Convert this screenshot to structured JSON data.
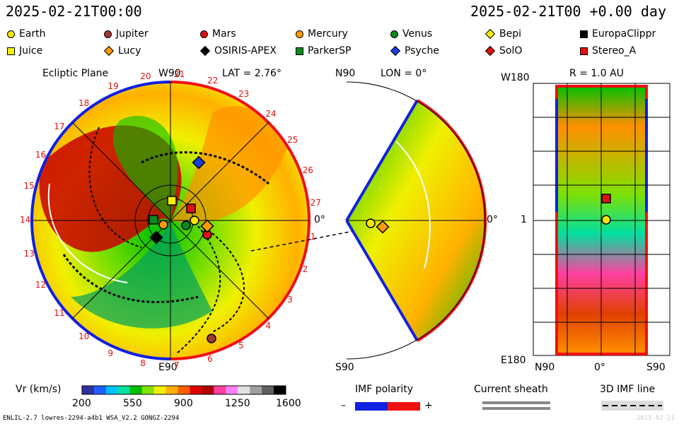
{
  "header": {
    "left_timestamp": "2025-02-21T00:00",
    "right_timestamp": "2025-02-21T00 +0.00 day"
  },
  "legend": [
    {
      "name": "Earth",
      "shape": "circle",
      "color": "#f5e600"
    },
    {
      "name": "Jupiter",
      "shape": "circle",
      "color": "#a03a30"
    },
    {
      "name": "Mars",
      "shape": "circle",
      "color": "#e01010"
    },
    {
      "name": "Mercury",
      "shape": "circle",
      "color": "#ff9a00"
    },
    {
      "name": "Venus",
      "shape": "circle",
      "color": "#0a8a20"
    },
    {
      "name": "Bepi",
      "shape": "diamond",
      "color": "#f5f000"
    },
    {
      "name": "EuropaClippr",
      "shape": "square",
      "color": "#000000"
    },
    {
      "name": "Juice",
      "shape": "square",
      "color": "#f5f000"
    },
    {
      "name": "Lucy",
      "shape": "diamond",
      "color": "#ff9a00"
    },
    {
      "name": "OSIRIS-APEX",
      "shape": "diamond",
      "color": "#000000"
    },
    {
      "name": "ParkerSP",
      "shape": "square",
      "color": "#0a8a20"
    },
    {
      "name": "Psyche",
      "shape": "diamond",
      "color": "#1a3fe0"
    },
    {
      "name": "SolO",
      "shape": "diamond",
      "color": "#e01010"
    },
    {
      "name": "Stereo_A",
      "shape": "square",
      "color": "#e01010"
    }
  ],
  "panels": {
    "ecliptic": {
      "title": "Ecliptic Plane",
      "top_label": "W90",
      "lat_label": "LAT = 2.76°",
      "bottom_label": "E90",
      "right_label": "0°",
      "carrington_numbers": [
        "20",
        "21",
        "22",
        "23",
        "24",
        "25",
        "26",
        "27",
        "1",
        "2",
        "3",
        "4",
        "5",
        "6",
        "7",
        "8",
        "9",
        "10",
        "11",
        "12",
        "13",
        "14",
        "15",
        "16",
        "17",
        "18",
        "19"
      ]
    },
    "meridional": {
      "top_label": "N90",
      "lon_label": "LON = 0°",
      "bottom_label": "S90",
      "right_label": "0°"
    },
    "radial": {
      "r_label": "R = 1.0 AU",
      "top_left": "W180",
      "mid_left": "1",
      "bottom_left": "E180",
      "bottom_axis": [
        "N90",
        "0°",
        "S90"
      ]
    }
  },
  "colorbar": {
    "label": "Vr (km/s)",
    "ticks": [
      "200",
      "550",
      "900",
      "1250",
      "1600"
    ],
    "colors": [
      "#3030a0",
      "#2060ff",
      "#00c0ff",
      "#00e0a0",
      "#00c000",
      "#80e000",
      "#f0f000",
      "#ffb000",
      "#ff6000",
      "#e00000",
      "#b00000",
      "#ff40a0",
      "#ff80ff",
      "#e0e0e0",
      "#a0a0a0",
      "#606060",
      "#000000"
    ]
  },
  "imf": {
    "label": "IMF polarity",
    "minus": "–",
    "plus": "+",
    "neg_color": "#1020e0",
    "pos_color": "#f01010"
  },
  "current_sheath": {
    "label": "Current sheath"
  },
  "imf_line": {
    "label": "3D IMF line"
  },
  "footer": {
    "left": "ENLIL-2.7 lowres-2294-a4b1 WSA_V2.2 GONGZ-2294",
    "right": "2025-02-21"
  }
}
